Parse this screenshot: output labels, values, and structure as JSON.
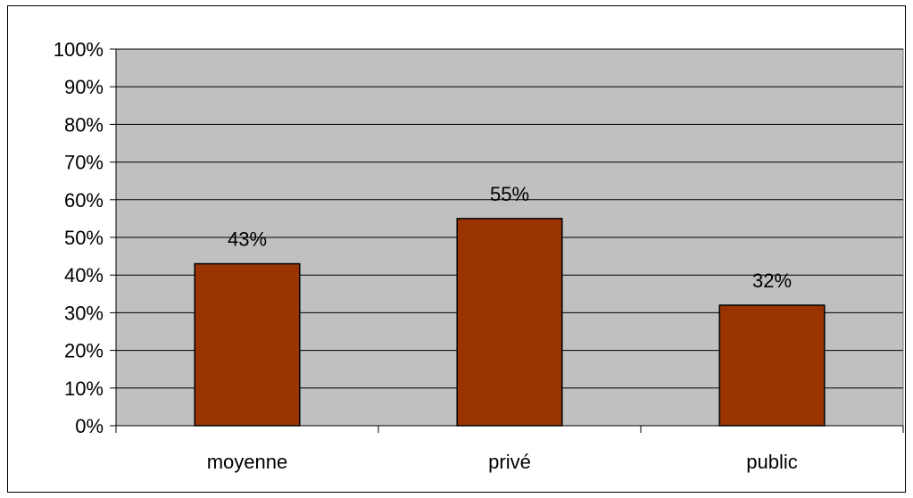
{
  "chart_data": {
    "type": "bar",
    "categories": [
      "moyenne",
      "privé",
      "public"
    ],
    "values": [
      43,
      55,
      32
    ],
    "data_labels": [
      "43%",
      "55%",
      "32%"
    ],
    "ylim": [
      0,
      100
    ],
    "y_ticks": [
      0,
      10,
      20,
      30,
      40,
      50,
      60,
      70,
      80,
      90,
      100
    ],
    "y_tick_labels": [
      "0%",
      "10%",
      "20%",
      "30%",
      "40%",
      "50%",
      "60%",
      "70%",
      "80%",
      "90%",
      "100%"
    ],
    "grid": true,
    "legend": "none",
    "colors": {
      "bar": "#993300",
      "plot_background": "#c0c0c0",
      "gridline": "#000000"
    }
  }
}
